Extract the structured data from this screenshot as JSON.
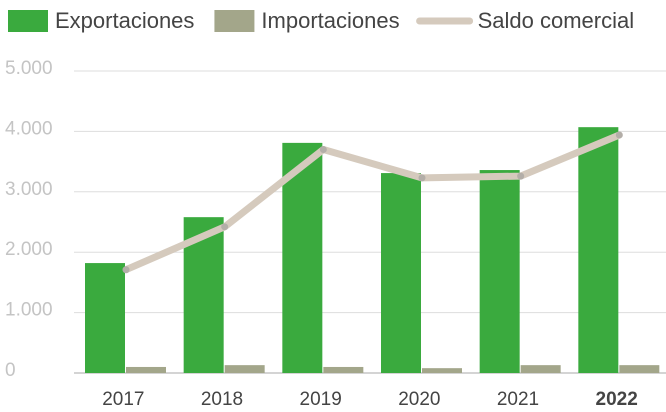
{
  "chart_data": {
    "type": "bar-line",
    "categories": [
      "2017",
      "2018",
      "2019",
      "2020",
      "2021",
      "2022"
    ],
    "series": [
      {
        "name": "Exportaciones",
        "type": "bar",
        "color": "#3aaa3e",
        "values": [
          1820,
          2580,
          3810,
          3310,
          3360,
          4070
        ]
      },
      {
        "name": "Importaciones",
        "type": "bar",
        "color": "#a3a68a",
        "values": [
          100,
          130,
          100,
          80,
          130,
          130
        ]
      },
      {
        "name": "Saldo comercial",
        "type": "line",
        "color": "#d5cabd",
        "values": [
          1710,
          2420,
          3700,
          3230,
          3260,
          3940
        ]
      }
    ],
    "ylim": [
      0,
      5000
    ],
    "yticks": [
      {
        "value": 0,
        "label": "0"
      },
      {
        "value": 1000,
        "label": "1.000"
      },
      {
        "value": 2000,
        "label": "2.000"
      },
      {
        "value": 3000,
        "label": "3.000"
      },
      {
        "value": 4000,
        "label": "4.000"
      },
      {
        "value": 5000,
        "label": "5.000"
      }
    ],
    "grid": true,
    "legend": "top"
  }
}
